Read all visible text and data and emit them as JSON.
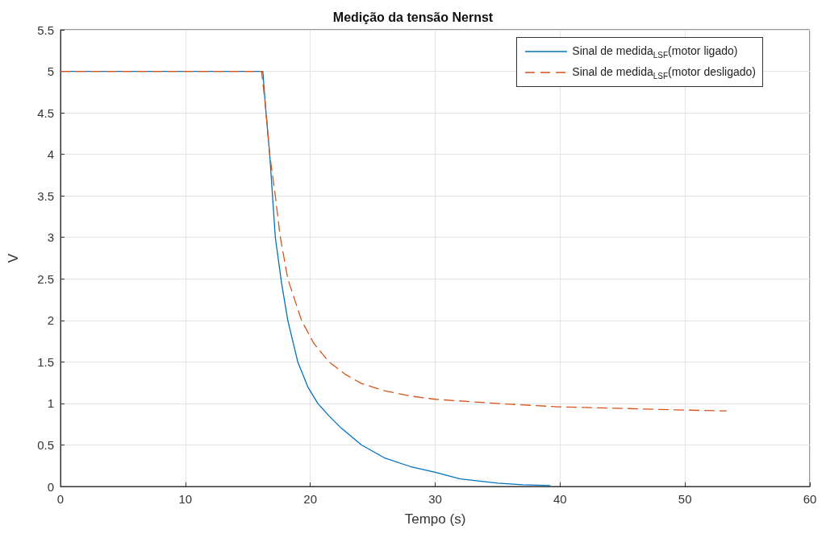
{
  "chart_data": {
    "type": "line",
    "title": "Medição da tensão Nernst",
    "xlabel": "Tempo (s)",
    "ylabel": "V",
    "xlim": [
      0,
      60
    ],
    "xticks": [
      0,
      10,
      20,
      30,
      40,
      50,
      60
    ],
    "ylim": [
      0,
      5.5
    ],
    "yticks": [
      0,
      0.5,
      1,
      1.5,
      2,
      2.5,
      3,
      3.5,
      4,
      4.5,
      5,
      5.5
    ],
    "grid": true,
    "legend": "top right",
    "marker": "none",
    "series": [
      {
        "name": "Sinal de medida$_{LSF}$(motor ligado)",
        "color": "#0072bd",
        "line_style": "solid",
        "x": [
          0,
          16.2,
          16.4,
          16.75,
          17.2,
          17.7,
          18.2,
          19.0,
          19.8,
          20.6,
          21.5,
          22.5,
          24.1,
          26,
          28,
          30,
          32,
          35,
          37,
          39.2
        ],
        "values": [
          5,
          5,
          4.6,
          4,
          3,
          2.45,
          2,
          1.5,
          1.2,
          1,
          0.85,
          0.7,
          0.5,
          0.34,
          0.24,
          0.17,
          0.09,
          0.04,
          0.02,
          0.01
        ]
      },
      {
        "name": "Sinal de medida$_{LSF}$(motor desligado)",
        "color": "#d95319",
        "line_style": "dashed",
        "x": [
          0,
          16.1,
          16.4,
          16.75,
          17.2,
          17.6,
          18.2,
          19.3,
          20.3,
          21.5,
          22.8,
          24.1,
          26,
          28,
          30,
          33,
          36,
          39.8,
          45,
          50,
          53.3
        ],
        "values": [
          5,
          5,
          4.6,
          4,
          3.5,
          3,
          2.5,
          2,
          1.72,
          1.5,
          1.35,
          1.24,
          1.15,
          1.09,
          1.05,
          1.02,
          0.99,
          0.96,
          0.94,
          0.92,
          0.91
        ]
      }
    ]
  }
}
